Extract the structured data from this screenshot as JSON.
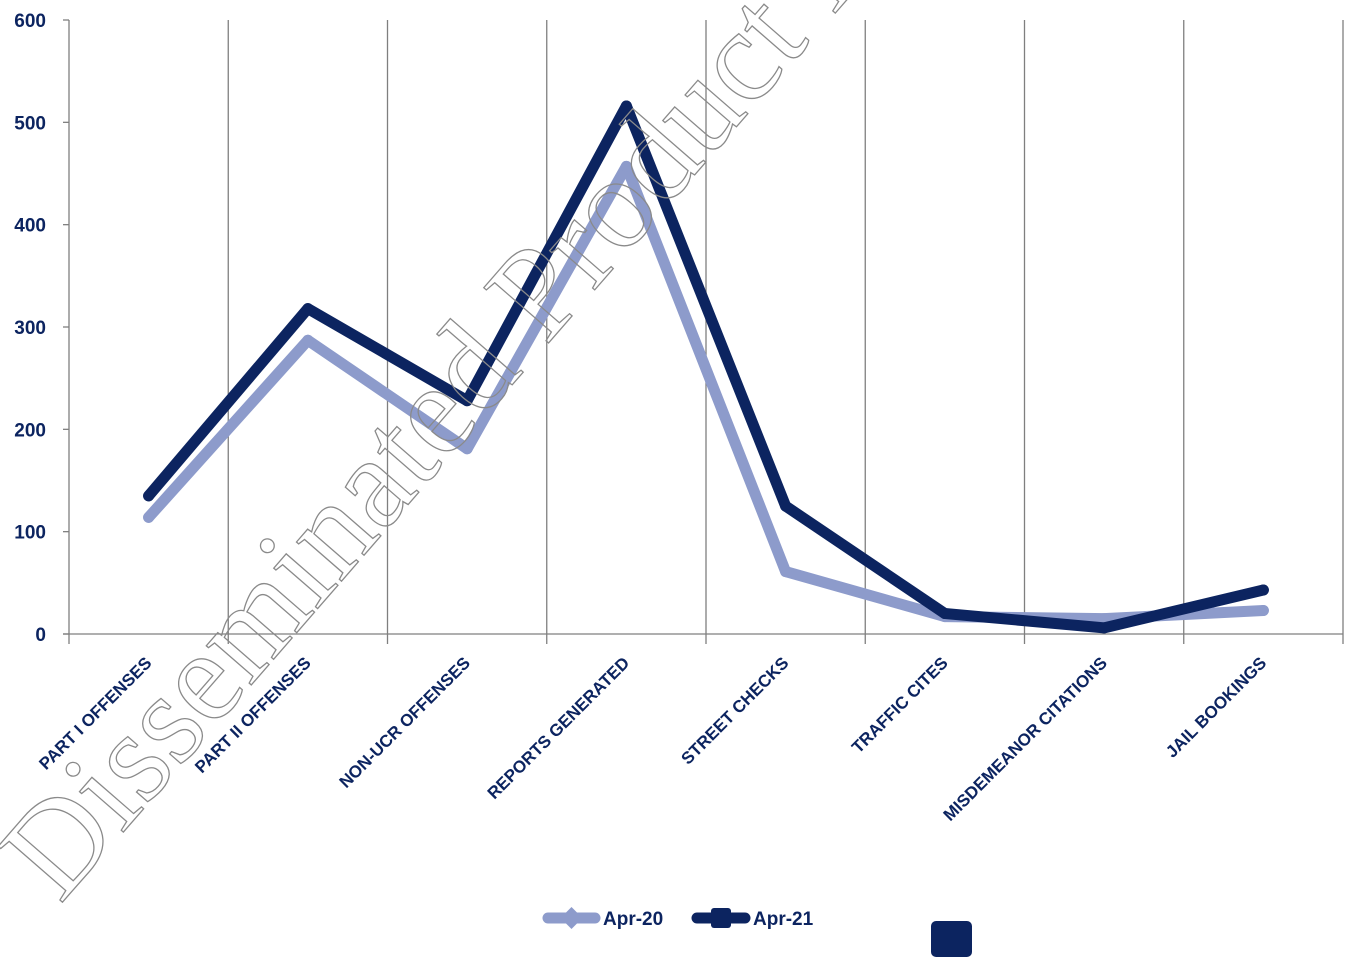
{
  "chart_data": {
    "type": "line",
    "categories": [
      "PART I OFFENSES",
      "PART II OFFENSES",
      "NON-UCR OFFENSES",
      "REPORTS GENERATED",
      "STREET CHECKS",
      "TRAFFIC CITES",
      "MISDEMEANOR CITATIONS",
      "JAIL BOOKINGS"
    ],
    "series": [
      {
        "name": "Apr-20",
        "color": "#8d9bcb",
        "values": [
          114,
          287,
          181,
          457,
          61,
          17,
          15,
          23
        ]
      },
      {
        "name": "Apr-21",
        "color": "#0c2460",
        "values": [
          135,
          318,
          228,
          516,
          125,
          20,
          6,
          43
        ]
      }
    ],
    "ylim": [
      0,
      600
    ],
    "yticks": [
      0,
      100,
      200,
      300,
      400,
      500,
      600
    ],
    "grid": "vertical",
    "legend_position": "bottom-center"
  },
  "watermark": "Disseminated Product Incl"
}
